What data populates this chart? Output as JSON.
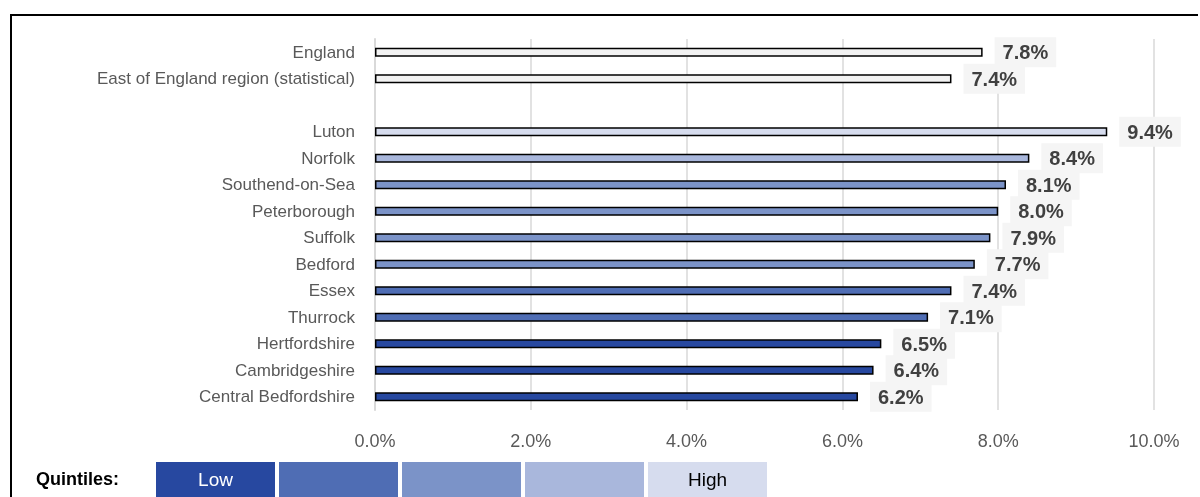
{
  "chart_data": {
    "type": "bar",
    "orientation": "horizontal",
    "categories": [
      "England",
      "East of England region (statistical)",
      null,
      "Luton",
      "Norfolk",
      "Southend-on-Sea",
      "Peterborough",
      "Suffolk",
      "Bedford",
      "Essex",
      "Thurrock",
      "Hertfordshire",
      "Cambridgeshire",
      "Central Bedfordshire"
    ],
    "values": [
      7.8,
      7.4,
      null,
      9.4,
      8.4,
      8.1,
      8.0,
      7.9,
      7.7,
      7.4,
      7.1,
      6.5,
      6.4,
      6.2
    ],
    "value_labels": [
      "7.8%",
      "7.4%",
      null,
      "9.4%",
      "8.4%",
      "8.1%",
      "8.0%",
      "7.9%",
      "7.7%",
      "7.4%",
      "7.1%",
      "6.5%",
      "6.4%",
      "6.2%"
    ],
    "colors": [
      "#f2f2f2",
      "#f2f2f2",
      "#f2f2f2",
      "#d6dcee",
      "#a9b7dc",
      "#7b93c8",
      "#7b93c8",
      "#7b93c8",
      "#7b93c8",
      "#4f6db4",
      "#4f6db4",
      "#2748a0",
      "#2748a0",
      "#2748a0"
    ],
    "xlim": [
      0,
      10
    ],
    "xticks": [
      {
        "value": 0,
        "label": "0.0%"
      },
      {
        "value": 2,
        "label": "2.0%"
      },
      {
        "value": 4,
        "label": "4.0%"
      },
      {
        "value": 6,
        "label": "6.0%"
      },
      {
        "value": 8,
        "label": "8.0%"
      },
      {
        "value": 10,
        "label": "10.0%"
      }
    ],
    "grid": "x",
    "annotations": [
      "Quintiles:",
      "Low",
      "High"
    ]
  }
}
